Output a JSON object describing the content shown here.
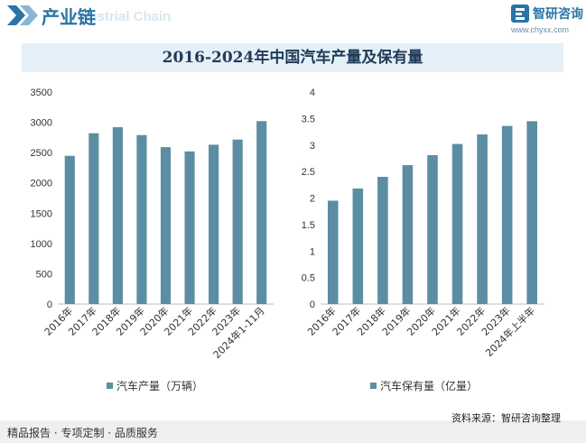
{
  "header": {
    "title": "产业链",
    "subtitle": "Industrial Chain",
    "logo_text": "智研咨询",
    "logo_url": "www.chyxx.com",
    "logo_icon": "zhiyan-logo-icon"
  },
  "main_title": "2016-2024年中国汽车产量及保有量",
  "footer": {
    "left_text": "精品报告 · 专项定制 · 品质服务",
    "source": "资料来源：智研咨询整理"
  },
  "colors": {
    "bar": "#5b8ea3",
    "accent": "#2a74a6",
    "title_bg": "#e5f0f8"
  },
  "chart_data": [
    {
      "type": "bar",
      "categories": [
        "2016年",
        "2017年",
        "2018年",
        "2019年",
        "2020年",
        "2021年",
        "2022年",
        "2023年",
        "2024年1-11月"
      ],
      "series": [
        {
          "name": "汽车产量（万辆）",
          "values": [
            2447,
            2820,
            2920,
            2790,
            2590,
            2520,
            2630,
            2715,
            3020
          ]
        }
      ],
      "ylim": [
        0,
        3500
      ],
      "yticks": [
        "0",
        "500",
        "1000",
        "1500",
        "2000",
        "2500",
        "3000",
        "3500"
      ],
      "legend_position": "bottom"
    },
    {
      "type": "bar",
      "categories": [
        "2016年",
        "2017年",
        "2018年",
        "2019年",
        "2020年",
        "2021年",
        "2022年",
        "2023年",
        "2024年上半年"
      ],
      "series": [
        {
          "name": "汽车保有量（亿量）",
          "values": [
            1.95,
            2.18,
            2.4,
            2.62,
            2.81,
            3.02,
            3.2,
            3.36,
            3.45
          ]
        }
      ],
      "ylim": [
        0,
        4
      ],
      "yticks": [
        "0",
        "0.5",
        "1",
        "1.5",
        "2",
        "2.5",
        "3",
        "3.5",
        "4"
      ],
      "legend_position": "bottom"
    }
  ]
}
